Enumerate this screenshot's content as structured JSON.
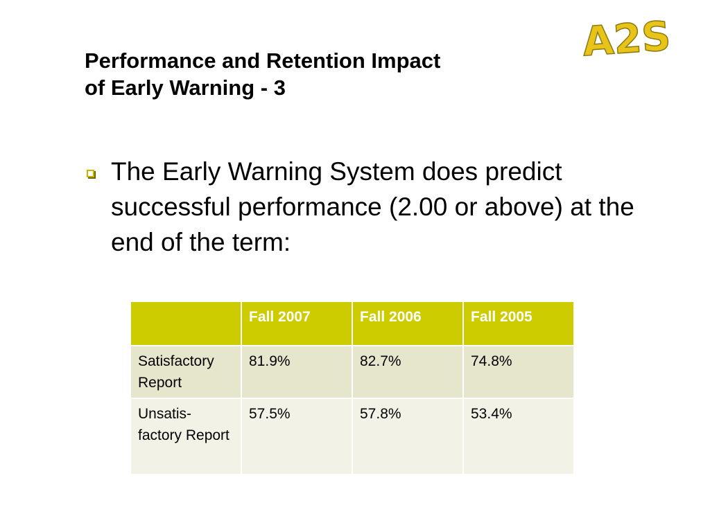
{
  "slide": {
    "title_lines": [
      "Performance and Retention Impact",
      "of Early Warning - 3"
    ],
    "logo_text": "A2S",
    "bullet": "The Early Warning System does predict successful performance (2.00 or above) at the end of the term:"
  },
  "table": {
    "headers": [
      "",
      "Fall 2007",
      "Fall 2006",
      "Fall 2005"
    ],
    "rows": [
      {
        "label": "Satisfactory Report",
        "values": [
          "81.9%",
          "82.7%",
          "74.8%"
        ]
      },
      {
        "label": "Unsatis-factory Report",
        "values": [
          "57.5%",
          "57.8%",
          "53.4%"
        ]
      }
    ]
  },
  "colors": {
    "accent": "#cccc00",
    "logo_fill": "#e8c41a",
    "row_dark": "#e6e6cc",
    "row_light": "#f2f2e6"
  }
}
